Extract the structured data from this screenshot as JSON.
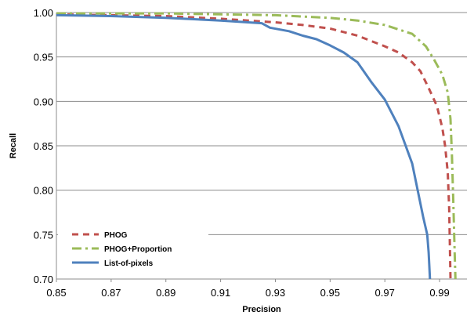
{
  "chart_data": {
    "type": "line",
    "title": "",
    "xlabel": "Precision",
    "ylabel": "Recall",
    "xlim": [
      0.85,
      1.0
    ],
    "ylim": [
      0.7,
      1.0
    ],
    "x_ticks": [
      "0.85",
      "0.87",
      "0.89",
      "0.91",
      "0.93",
      "0.95",
      "0.97",
      "0.99"
    ],
    "y_ticks": [
      "0.70",
      "0.75",
      "0.80",
      "0.85",
      "0.90",
      "0.95",
      "1.00"
    ],
    "grid": "horizontal",
    "legend_position": "bottom-left",
    "series": [
      {
        "name": "PHOG",
        "color": "#c0504d",
        "dash": "dashed",
        "points": [
          [
            0.85,
            0.998
          ],
          [
            0.87,
            0.997
          ],
          [
            0.89,
            0.996
          ],
          [
            0.91,
            0.993
          ],
          [
            0.92,
            0.991
          ],
          [
            0.93,
            0.989
          ],
          [
            0.94,
            0.986
          ],
          [
            0.95,
            0.982
          ],
          [
            0.96,
            0.974
          ],
          [
            0.965,
            0.968
          ],
          [
            0.97,
            0.962
          ],
          [
            0.975,
            0.955
          ],
          [
            0.98,
            0.944
          ],
          [
            0.983,
            0.934
          ],
          [
            0.986,
            0.915
          ],
          [
            0.989,
            0.895
          ],
          [
            0.991,
            0.87
          ],
          [
            0.992,
            0.85
          ],
          [
            0.993,
            0.82
          ],
          [
            0.9935,
            0.78
          ],
          [
            0.994,
            0.7
          ]
        ]
      },
      {
        "name": "PHOG+Proportion",
        "color": "#9bbb59",
        "dash": "dashdot",
        "points": [
          [
            0.85,
            0.999
          ],
          [
            0.87,
            0.999
          ],
          [
            0.89,
            0.999
          ],
          [
            0.91,
            0.998
          ],
          [
            0.93,
            0.997
          ],
          [
            0.95,
            0.994
          ],
          [
            0.96,
            0.991
          ],
          [
            0.97,
            0.986
          ],
          [
            0.98,
            0.976
          ],
          [
            0.985,
            0.962
          ],
          [
            0.988,
            0.947
          ],
          [
            0.991,
            0.93
          ],
          [
            0.993,
            0.91
          ],
          [
            0.994,
            0.88
          ],
          [
            0.9945,
            0.84
          ],
          [
            0.995,
            0.79
          ],
          [
            0.9955,
            0.73
          ],
          [
            0.9958,
            0.7
          ]
        ]
      },
      {
        "name": "List-of-pixels",
        "color": "#4f81bd",
        "dash": "solid",
        "points": [
          [
            0.85,
            0.997
          ],
          [
            0.87,
            0.996
          ],
          [
            0.89,
            0.994
          ],
          [
            0.91,
            0.991
          ],
          [
            0.925,
            0.988
          ],
          [
            0.928,
            0.983
          ],
          [
            0.935,
            0.979
          ],
          [
            0.94,
            0.974
          ],
          [
            0.945,
            0.97
          ],
          [
            0.95,
            0.963
          ],
          [
            0.955,
            0.955
          ],
          [
            0.96,
            0.944
          ],
          [
            0.965,
            0.922
          ],
          [
            0.97,
            0.902
          ],
          [
            0.975,
            0.872
          ],
          [
            0.98,
            0.83
          ],
          [
            0.982,
            0.8
          ],
          [
            0.984,
            0.77
          ],
          [
            0.9855,
            0.75
          ],
          [
            0.986,
            0.73
          ],
          [
            0.9865,
            0.7
          ]
        ]
      }
    ]
  }
}
